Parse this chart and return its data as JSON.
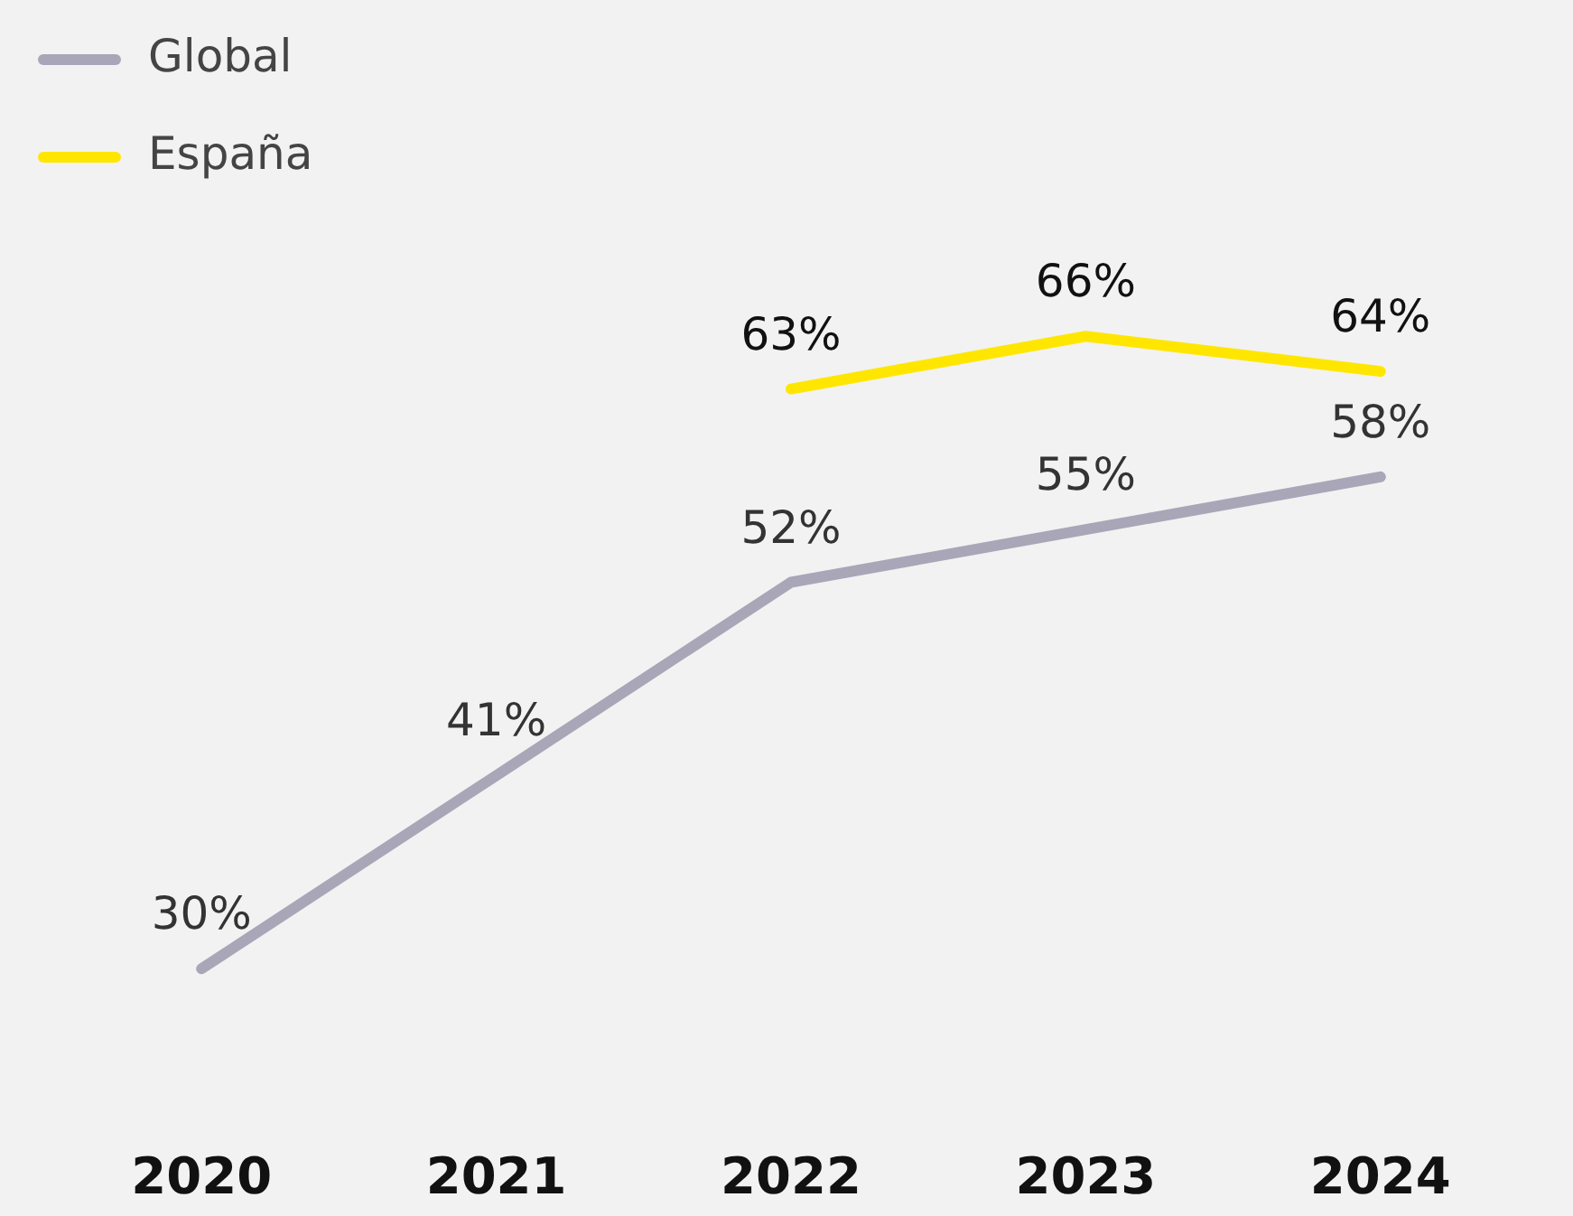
{
  "chart_data": {
    "type": "line",
    "categories": [
      "2020",
      "2021",
      "2022",
      "2023",
      "2024"
    ],
    "series": [
      {
        "name": "Global",
        "color": "#a9a6b8",
        "values": [
          30,
          41,
          52,
          55,
          58
        ],
        "value_labels": [
          "30%",
          "41%",
          "52%",
          "55%",
          "58%"
        ]
      },
      {
        "name": "España",
        "color": "#ffe600",
        "values": [
          null,
          null,
          63,
          66,
          64
        ],
        "value_labels": [
          null,
          null,
          "63%",
          "66%",
          "64%"
        ]
      }
    ],
    "legend": "top left",
    "grid": false,
    "marker": "none",
    "line_style": "solid"
  }
}
